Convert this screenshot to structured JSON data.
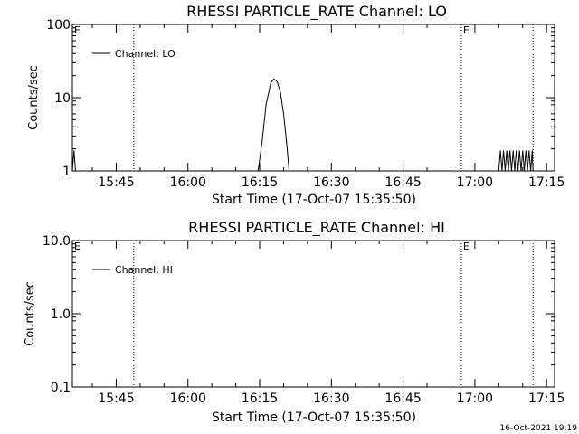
{
  "footer": {
    "timestamp": "16-Oct-2021 19:19"
  },
  "chart_data": [
    {
      "type": "line",
      "title": "RHESSI PARTICLE_RATE Channel: LO",
      "xlabel": "Start Time (17-Oct-07 15:35:50)",
      "ylabel": "Counts/sec",
      "y_scale": "log",
      "xlim": [
        "15:35:50",
        "17:16:40"
      ],
      "ylim": [
        1,
        100
      ],
      "x_ticks": [
        "15:45",
        "16:00",
        "16:15",
        "16:30",
        "16:45",
        "17:00",
        "17:15"
      ],
      "y_ticks": [
        "1",
        "10",
        "100"
      ],
      "legend": {
        "position": "top-left",
        "entries": [
          "Channel: LO"
        ]
      },
      "markers": [
        {
          "label": "E",
          "x": "15:35:50"
        },
        {
          "label": "E",
          "x": "16:57:10"
        }
      ],
      "vlines_dotted": [
        "15:48:40",
        "16:57:10",
        "17:12:10"
      ],
      "series": [
        {
          "name": "Channel: LO",
          "points": [
            [
              "15:35:50",
              1.0
            ],
            [
              "15:36:10",
              1.9
            ],
            [
              "15:36:30",
              1.0
            ],
            [
              "16:14:40",
              1.0
            ],
            [
              "16:15:30",
              2.5
            ],
            [
              "16:16:20",
              8.0
            ],
            [
              "16:17:20",
              16.0
            ],
            [
              "16:18:00",
              18.0
            ],
            [
              "16:18:40",
              16.5
            ],
            [
              "16:19:20",
              12.0
            ],
            [
              "16:20:00",
              6.0
            ],
            [
              "16:20:40",
              2.3
            ],
            [
              "16:21:10",
              1.0
            ],
            [
              "17:05:00",
              1.0
            ],
            [
              "17:05:20",
              1.9
            ],
            [
              "17:05:40",
              1.0
            ],
            [
              "17:06:00",
              1.9
            ],
            [
              "17:06:20",
              1.0
            ],
            [
              "17:06:40",
              1.9
            ],
            [
              "17:07:00",
              1.0
            ],
            [
              "17:07:20",
              1.9
            ],
            [
              "17:07:40",
              1.0
            ],
            [
              "17:08:00",
              1.9
            ],
            [
              "17:08:20",
              1.0
            ],
            [
              "17:08:40",
              1.9
            ],
            [
              "17:09:00",
              1.0
            ],
            [
              "17:09:20",
              1.9
            ],
            [
              "17:09:40",
              1.0
            ],
            [
              "17:10:00",
              1.9
            ],
            [
              "17:10:20",
              1.0
            ],
            [
              "17:10:40",
              1.9
            ],
            [
              "17:11:00",
              1.0
            ],
            [
              "17:11:20",
              1.9
            ],
            [
              "17:11:40",
              1.0
            ],
            [
              "17:12:00",
              1.9
            ],
            [
              "17:12:10",
              1.0
            ]
          ]
        }
      ]
    },
    {
      "type": "line",
      "title": "RHESSI PARTICLE_RATE Channel: HI",
      "xlabel": "Start Time (17-Oct-07 15:35:50)",
      "ylabel": "Counts/sec",
      "y_scale": "log",
      "xlim": [
        "15:35:50",
        "17:16:40"
      ],
      "ylim": [
        0.1,
        10
      ],
      "x_ticks": [
        "15:45",
        "16:00",
        "16:15",
        "16:30",
        "16:45",
        "17:00",
        "17:15"
      ],
      "y_ticks": [
        "0.1",
        "1.0",
        "10.0"
      ],
      "legend": {
        "position": "top-left",
        "entries": [
          "Channel: HI"
        ]
      },
      "markers": [
        {
          "label": "E",
          "x": "15:35:50"
        },
        {
          "label": "E",
          "x": "16:57:10"
        }
      ],
      "vlines_dotted": [
        "15:48:40",
        "16:57:10",
        "17:12:10"
      ],
      "series": [
        {
          "name": "Channel: HI",
          "points": []
        }
      ]
    }
  ]
}
